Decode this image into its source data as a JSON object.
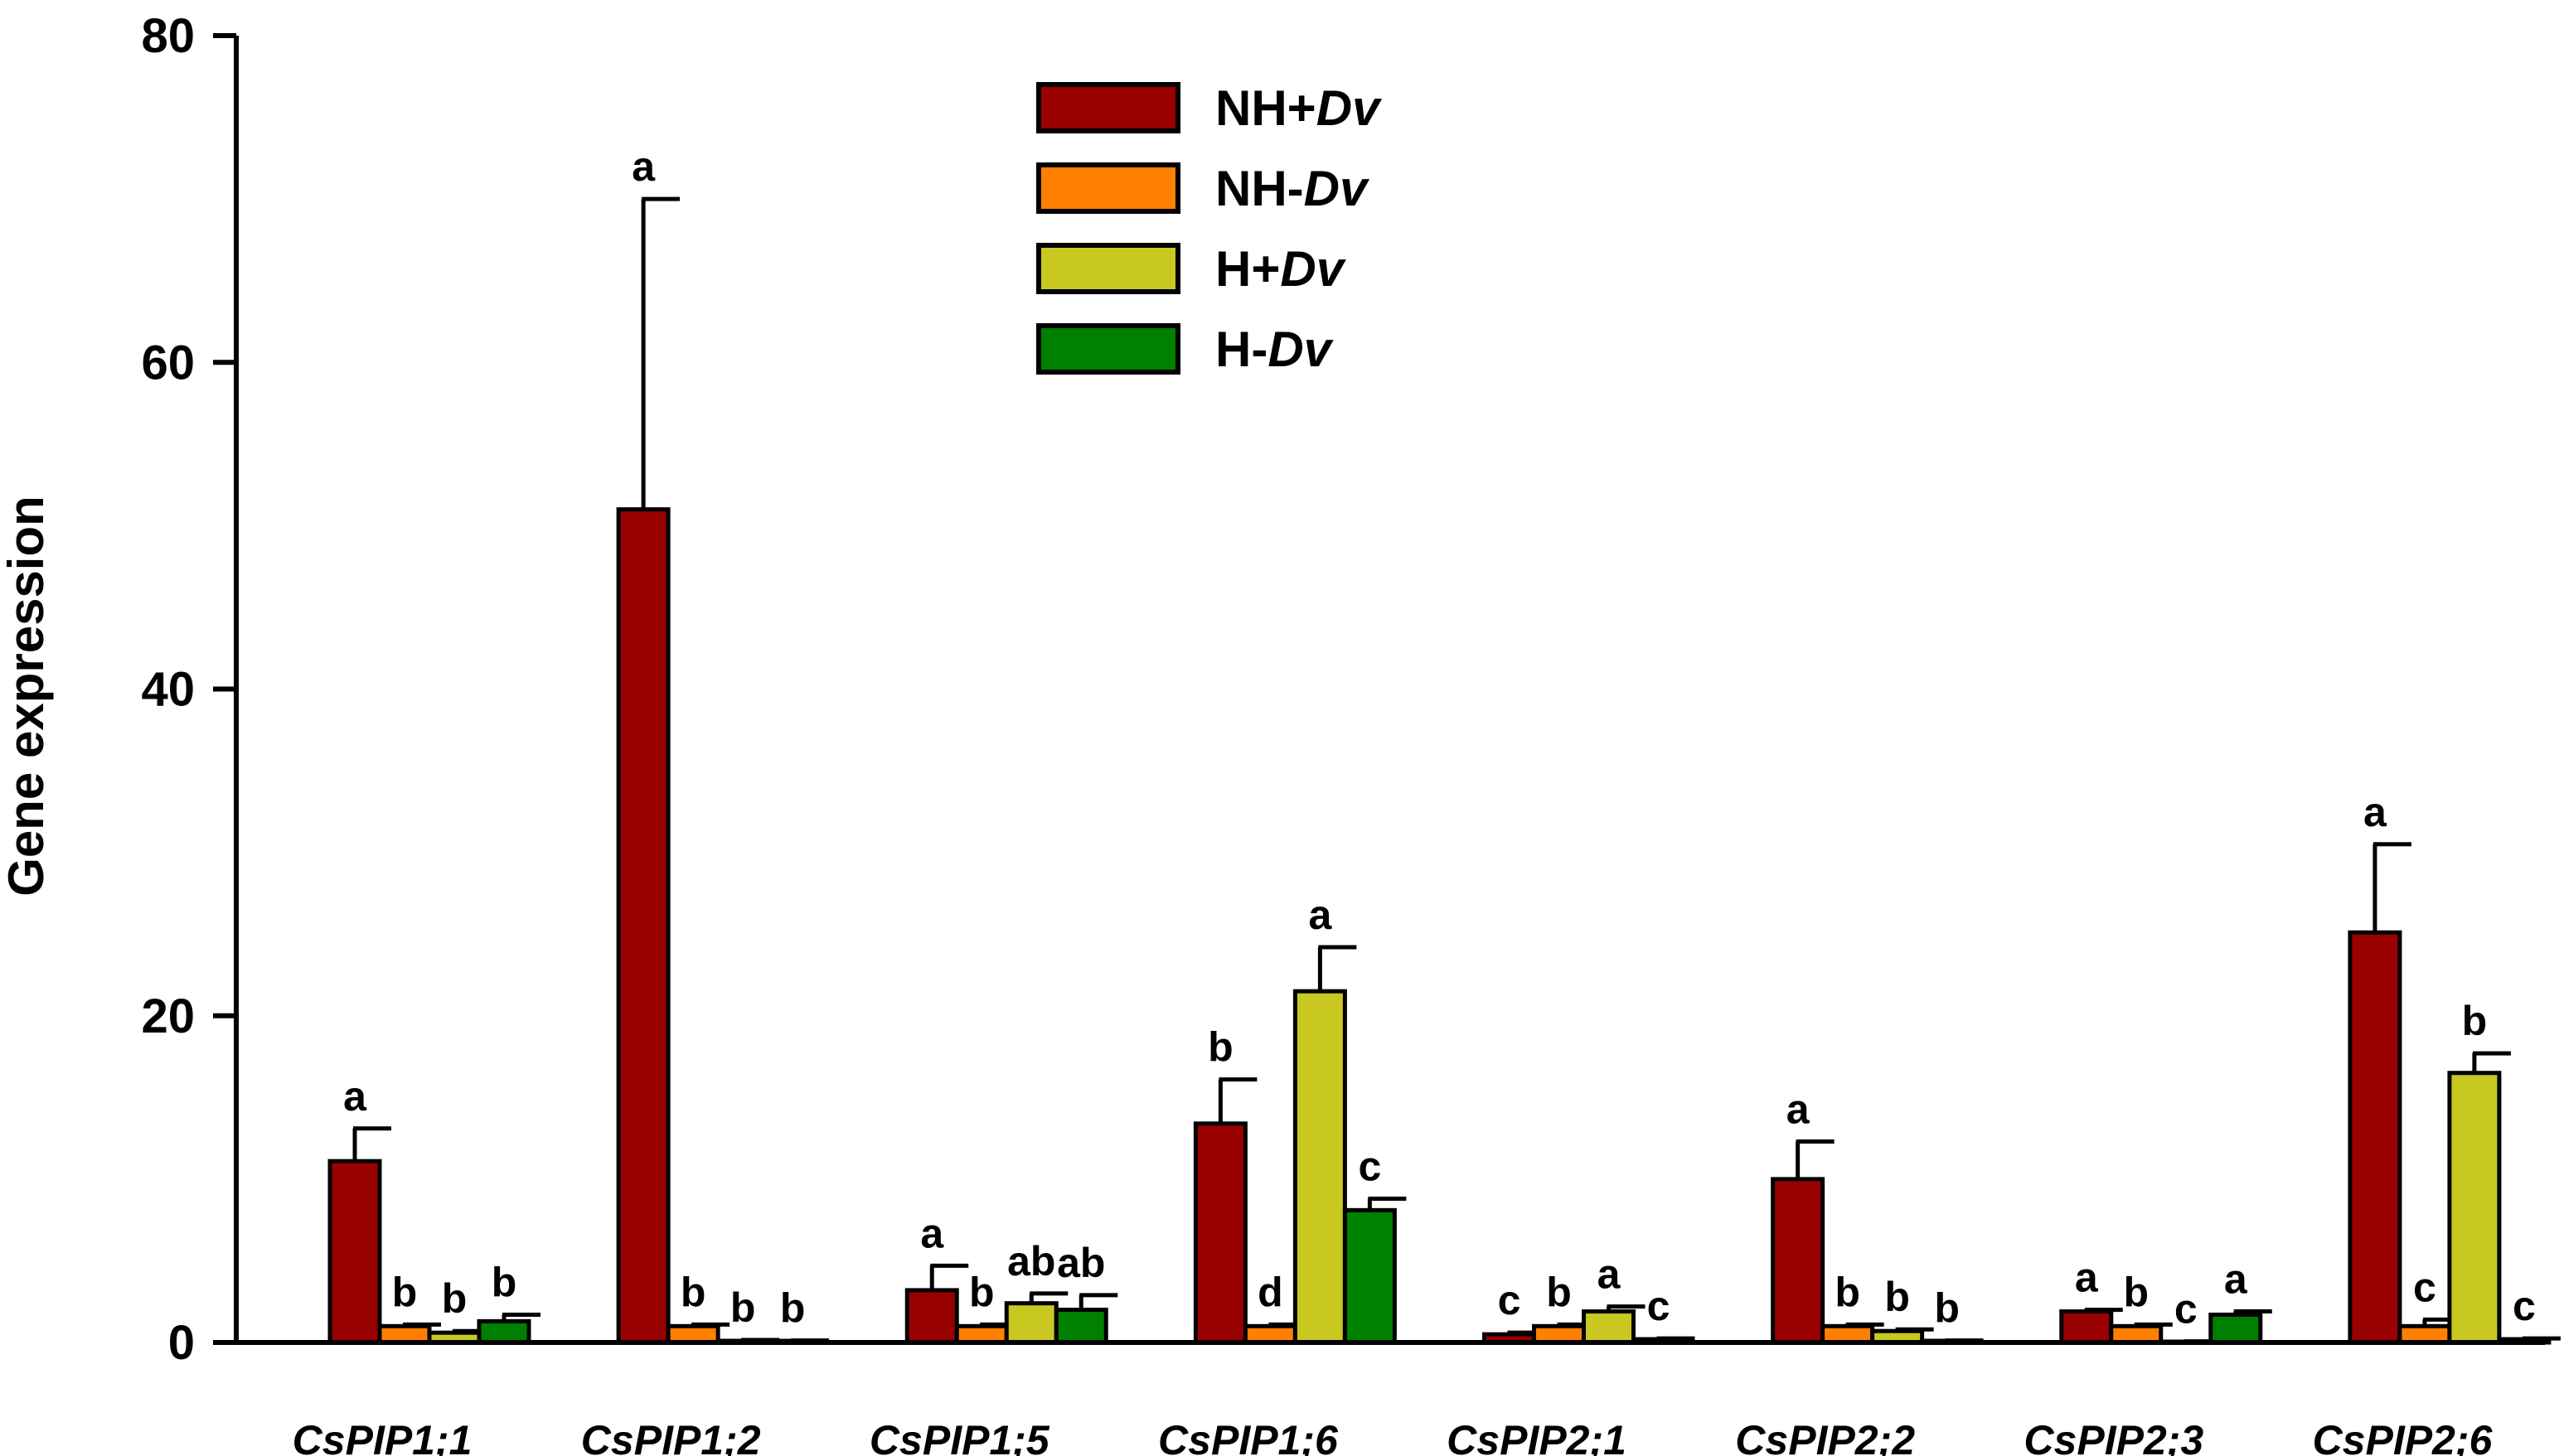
{
  "chart_data": {
    "type": "bar",
    "ylabel": "Gene expression",
    "xlabel": "",
    "ylim": [
      0,
      80
    ],
    "yticks": [
      0,
      20,
      40,
      60,
      80
    ],
    "error_bars": true,
    "legend_position": "top-center",
    "categories": [
      "CsPIP1;1",
      "CsPIP1;2",
      "CsPIP1;5",
      "CsPIP1;6",
      "CsPIP2;1",
      "CsPIP2;2",
      "CsPIP2;3",
      "CsPIP2;6"
    ],
    "series": [
      {
        "name": "NH+Dv",
        "name_plain": "NH+",
        "name_italic": "Dv",
        "color": "#990000",
        "values": [
          11.1,
          51.0,
          3.2,
          13.4,
          0.5,
          10.0,
          1.9,
          25.1
        ],
        "errors": [
          2.0,
          19.0,
          1.5,
          2.7,
          0.1,
          2.3,
          0.1,
          5.4
        ],
        "labels": [
          "a",
          "a",
          "a",
          "b",
          "c",
          "a",
          "a",
          "a"
        ]
      },
      {
        "name": "NH-Dv",
        "name_plain": "NH-",
        "name_italic": "Dv",
        "color": "#ff8000",
        "values": [
          1.0,
          1.0,
          1.0,
          1.0,
          1.0,
          1.0,
          1.0,
          1.0
        ],
        "errors": [
          0.1,
          0.1,
          0.1,
          0.1,
          0.1,
          0.1,
          0.1,
          0.4
        ],
        "labels": [
          "b",
          "b",
          "b",
          "d",
          "b",
          "b",
          "b",
          "c"
        ]
      },
      {
        "name": "H+Dv",
        "name_plain": "H+",
        "name_italic": "Dv",
        "color": "#c8c820",
        "values": [
          0.6,
          0.1,
          2.4,
          21.5,
          1.9,
          0.7,
          0.05,
          16.5
        ],
        "errors": [
          0.1,
          0.05,
          0.6,
          2.7,
          0.3,
          0.1,
          0.02,
          1.2
        ],
        "labels": [
          "b",
          "b",
          "ab",
          "a",
          "a",
          "b",
          "c",
          "b"
        ]
      },
      {
        "name": "H-Dv",
        "name_plain": "H-",
        "name_italic": "Dv",
        "color": "#008000",
        "values": [
          1.3,
          0.1,
          2.0,
          8.1,
          0.2,
          0.1,
          1.7,
          0.2
        ],
        "errors": [
          0.4,
          0.02,
          0.9,
          0.7,
          0.05,
          0.02,
          0.2,
          0.05
        ],
        "labels": [
          "b",
          "b",
          "ab",
          "c",
          "c",
          "b",
          "a",
          "c"
        ]
      }
    ]
  }
}
